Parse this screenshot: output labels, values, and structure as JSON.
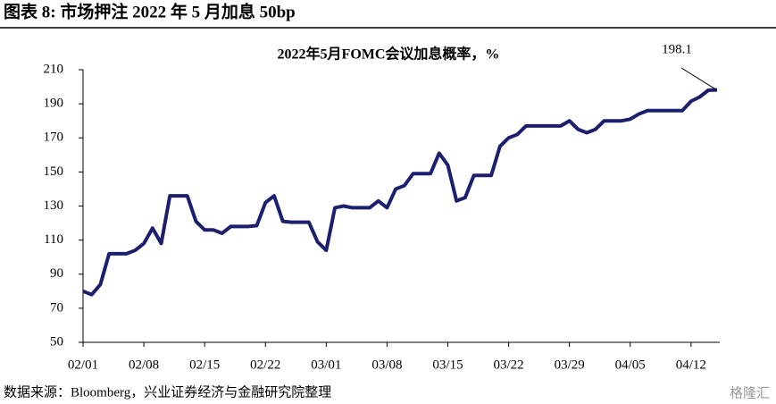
{
  "header": {
    "title": "图表 8: 市场押注 2022 年 5 月加息 50bp"
  },
  "source": "数据来源：Bloomberg，兴业证券经济与金融研究院整理",
  "watermark": "格隆汇",
  "chart_data": {
    "type": "line",
    "title": "2022年5月FOMC会议加息概率，%",
    "categories": [
      "02/01",
      null,
      null,
      null,
      null,
      null,
      null,
      "02/08",
      null,
      null,
      null,
      null,
      null,
      null,
      "02/15",
      null,
      null,
      null,
      null,
      null,
      null,
      "02/22",
      null,
      null,
      null,
      null,
      null,
      null,
      "03/01",
      null,
      null,
      null,
      null,
      null,
      null,
      "03/08",
      null,
      null,
      null,
      null,
      null,
      null,
      "03/15",
      null,
      null,
      null,
      null,
      null,
      null,
      "03/22",
      null,
      null,
      null,
      null,
      null,
      null,
      "03/29",
      null,
      null,
      null,
      null,
      null,
      null,
      "04/05",
      null,
      null,
      null,
      null,
      null,
      null,
      "04/12",
      null,
      null,
      null
    ],
    "values": [
      80,
      78,
      84,
      102,
      102,
      102,
      104,
      108,
      117,
      108,
      136,
      136,
      136,
      121,
      116,
      116,
      114,
      118,
      118,
      118,
      118.5,
      132,
      136,
      121,
      120.5,
      120.5,
      120.5,
      109,
      104,
      129,
      130,
      129,
      129,
      129,
      133,
      129,
      140,
      142,
      149,
      149,
      149,
      161,
      154,
      133,
      135,
      148,
      148,
      148,
      165,
      170,
      172,
      177,
      177,
      177,
      177,
      177,
      180,
      175,
      173,
      175,
      180,
      180,
      180,
      181,
      184,
      186,
      186,
      186,
      186,
      186,
      191.5,
      194,
      198,
      198.1
    ],
    "color": "#1c1f6e",
    "ylim": [
      50,
      210
    ],
    "yticks": [
      50,
      70,
      90,
      110,
      130,
      150,
      170,
      190,
      210
    ],
    "annotation_index": 73
  }
}
